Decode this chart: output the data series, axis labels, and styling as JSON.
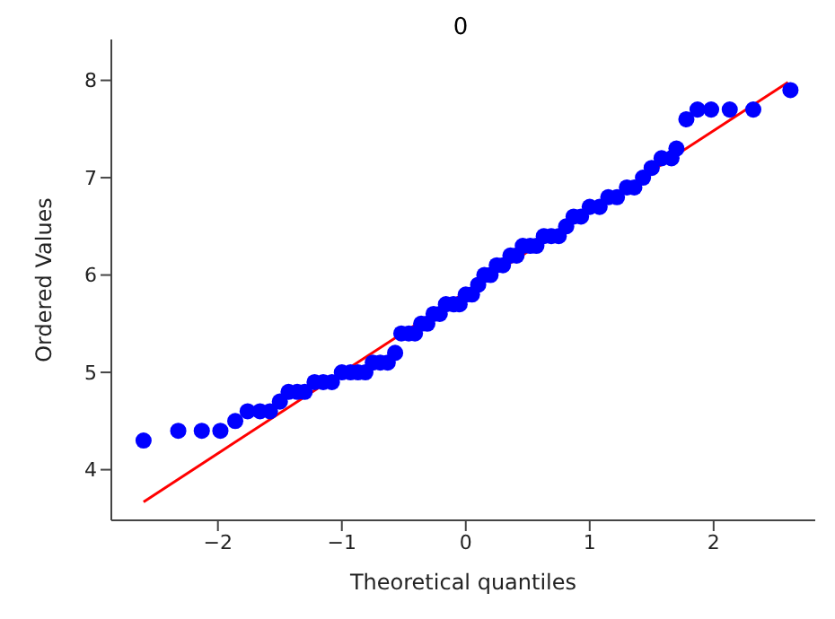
{
  "chart_data": {
    "type": "scatter",
    "title": "0",
    "xlabel": "Theoretical quantiles",
    "ylabel": "Ordered Values",
    "xlim": [
      -2.86,
      2.82
    ],
    "ylim": [
      3.48,
      8.42
    ],
    "xticks": [
      -2,
      -1,
      0,
      1,
      2
    ],
    "yticks": [
      4,
      5,
      6,
      7,
      8
    ],
    "grid": false,
    "legend": false,
    "marker": "circle",
    "series": [
      {
        "color": "#0000ff",
        "x": [
          -2.6,
          -2.32,
          -2.13,
          -1.98,
          -1.86,
          -1.76,
          -1.66,
          -1.58,
          -1.5,
          -1.43,
          -1.36,
          -1.3,
          -1.22,
          -1.15,
          -1.08,
          -1.0,
          -0.93,
          -0.87,
          -0.81,
          -0.75,
          -0.69,
          -0.63,
          -0.57,
          -0.52,
          -0.46,
          -0.41,
          -0.36,
          -0.31,
          -0.26,
          -0.21,
          -0.16,
          -0.1,
          -0.05,
          0,
          0.05,
          0.1,
          0.15,
          0.2,
          0.25,
          0.3,
          0.36,
          0.41,
          0.46,
          0.52,
          0.57,
          0.63,
          0.69,
          0.75,
          0.81,
          0.87,
          0.93,
          1.0,
          1.08,
          1.15,
          1.22,
          1.3,
          1.36,
          1.43,
          1.5,
          1.58,
          1.66,
          1.7,
          1.78,
          1.87,
          1.98,
          2.13,
          2.32,
          2.62
        ],
        "values": [
          4.3,
          4.4,
          4.4,
          4.4,
          4.5,
          4.6,
          4.6,
          4.6,
          4.7,
          4.8,
          4.8,
          4.8,
          4.9,
          4.9,
          4.9,
          5.0,
          5.0,
          5.0,
          5.0,
          5.1,
          5.1,
          5.1,
          5.2,
          5.4,
          5.4,
          5.4,
          5.5,
          5.5,
          5.6,
          5.6,
          5.7,
          5.7,
          5.7,
          5.8,
          5.8,
          5.9,
          6.0,
          6.0,
          6.1,
          6.1,
          6.2,
          6.2,
          6.3,
          6.3,
          6.3,
          6.4,
          6.4,
          6.4,
          6.5,
          6.6,
          6.6,
          6.7,
          6.7,
          6.8,
          6.8,
          6.9,
          6.9,
          7.0,
          7.1,
          7.2,
          7.2,
          7.3,
          7.6,
          7.7,
          7.7,
          7.7,
          7.7,
          7.9
        ]
      },
      {
        "type": "line",
        "color": "#ff0000",
        "x": [
          -2.6,
          2.6
        ],
        "values": [
          3.67,
          7.98
        ],
        "marker": "none"
      }
    ]
  }
}
